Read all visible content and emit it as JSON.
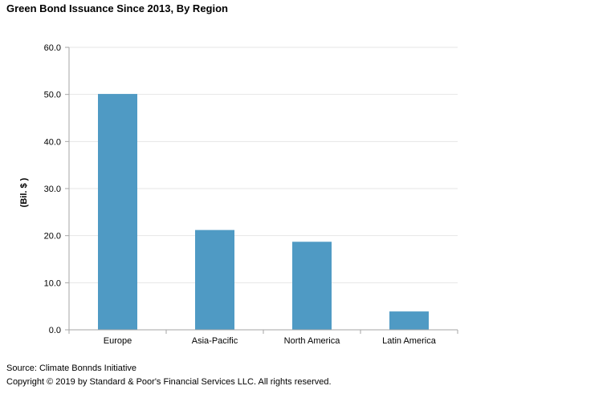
{
  "chart_data": {
    "type": "bar",
    "title": "Green Bond Issuance Since 2013, By Region",
    "ylabel": "(Bil. $ )",
    "xlabel": "",
    "categories": [
      "Europe",
      "Asia-Pacific",
      "North America",
      "Latin America"
    ],
    "values": [
      50.1,
      21.2,
      18.7,
      3.9
    ],
    "ylim": [
      0,
      60
    ],
    "yticks": [
      "0.0",
      "10.0",
      "20.0",
      "30.0",
      "40.0",
      "50.0",
      "60.0"
    ],
    "grid": true,
    "legend": "none",
    "bar_color": "#4f9ac4",
    "grid_color": "#e6e6e6",
    "axis_color": "#a6a6a6"
  },
  "footer": {
    "source": "Source: Climate Bonnds Initiative",
    "copyright": "Copyright © 2019 by Standard & Poor's Financial Services LLC. All rights reserved."
  }
}
